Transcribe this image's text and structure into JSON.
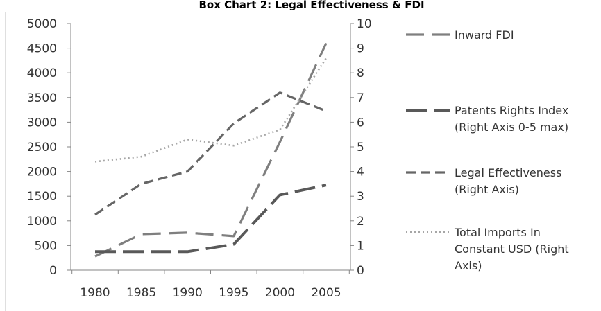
{
  "chart_data": {
    "type": "line",
    "title": "Box Chart 2: Legal Effectiveness & FDI",
    "x": [
      "1980",
      "1985",
      "1990",
      "1995",
      "2000",
      "2005"
    ],
    "left_axis": {
      "min": 0,
      "max": 5000,
      "ticks": [
        "0",
        "500",
        "1000",
        "1500",
        "2000",
        "2500",
        "3000",
        "3500",
        "4000",
        "4500",
        "5000"
      ]
    },
    "right_axis": {
      "min": 0,
      "max": 10,
      "ticks": [
        "0",
        "1",
        "2",
        "3",
        "4",
        "5",
        "6",
        "7",
        "8",
        "9",
        "10"
      ]
    },
    "grid": false,
    "legend_position": "right",
    "series": [
      {
        "name": "Inward FDI",
        "axis": "left",
        "style": "long-dash",
        "color": "#7f7f7f",
        "values": [
          280,
          730,
          760,
          690,
          2600,
          4600
        ]
      },
      {
        "name": "Patents Rights Index (Right Axis 0-5 max)",
        "axis": "right",
        "style": "long-dash-thick",
        "color": "#595959",
        "values": [
          0.75,
          0.75,
          0.75,
          1.05,
          3.05,
          3.45
        ]
      },
      {
        "name": "Legal Effectiveness (Right Axis)",
        "axis": "right",
        "style": "dash",
        "color": "#666666",
        "values": [
          2.25,
          3.5,
          4.0,
          5.95,
          7.2,
          6.45
        ]
      },
      {
        "name": "Total Imports In Constant USD (Right Axis)",
        "axis": "right",
        "style": "dot",
        "color": "#a6a6a6",
        "values": [
          4.4,
          4.6,
          5.3,
          5.05,
          5.7,
          8.6
        ]
      }
    ],
    "legend": [
      {
        "lines": [
          "Inward FDI"
        ]
      },
      {
        "lines": [
          "Patents Rights Index",
          "(Right Axis 0-5 max)"
        ]
      },
      {
        "lines": [
          "Legal Effectiveness",
          "(Right Axis)"
        ]
      },
      {
        "lines": [
          "Total Imports In",
          "Constant USD (Right",
          "Axis)"
        ]
      }
    ]
  }
}
